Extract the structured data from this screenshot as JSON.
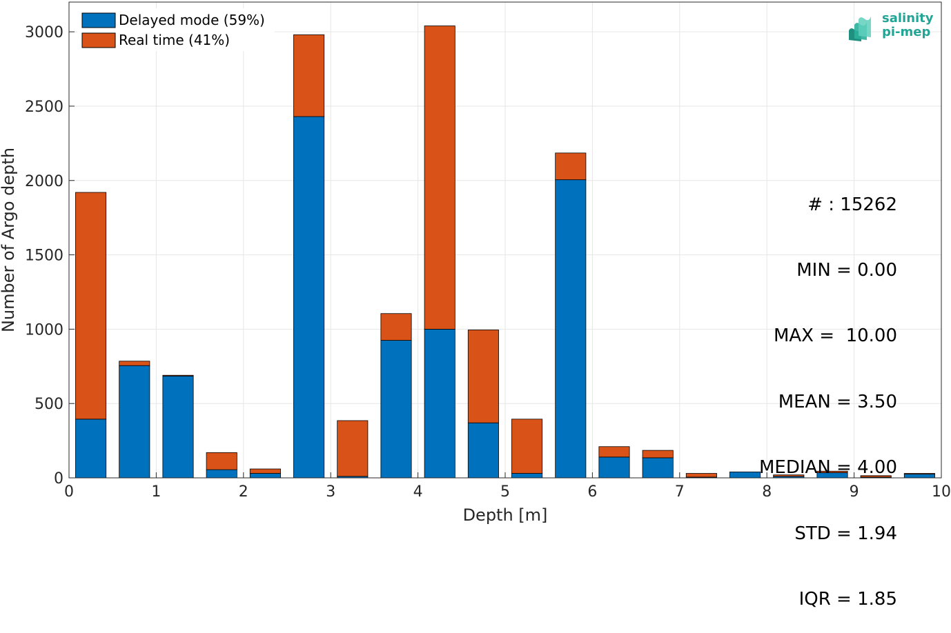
{
  "chart_data": {
    "type": "bar",
    "stacked": true,
    "xlabel": "Depth [m]",
    "ylabel": "Number of Argo depth",
    "xlim": [
      0,
      10
    ],
    "ylim": [
      0,
      3200
    ],
    "xticks": [
      "0",
      "1",
      "2",
      "3",
      "4",
      "5",
      "6",
      "7",
      "8",
      "9",
      "10"
    ],
    "yticks": [
      "0",
      "500",
      "1000",
      "1500",
      "2000",
      "2500",
      "3000"
    ],
    "grid": true,
    "legend_position": "top-left",
    "x": [
      0.25,
      0.75,
      1.25,
      1.75,
      2.25,
      2.75,
      3.25,
      3.75,
      4.25,
      4.75,
      5.25,
      5.75,
      6.25,
      6.75,
      7.25,
      7.75,
      8.25,
      8.75,
      9.25,
      9.75
    ],
    "series": [
      {
        "name": "Delayed mode (59%)",
        "color": "#0072bd",
        "values": [
          395,
          755,
          685,
          55,
          30,
          2430,
          10,
          925,
          1000,
          370,
          30,
          2005,
          140,
          135,
          5,
          40,
          10,
          35,
          5,
          25
        ]
      },
      {
        "name": "Real time (41%)",
        "color": "#d95319",
        "values": [
          1525,
          30,
          5,
          115,
          30,
          550,
          375,
          180,
          2040,
          625,
          365,
          180,
          70,
          50,
          25,
          0,
          10,
          10,
          10,
          5
        ]
      }
    ]
  },
  "stats": [
    "# : 15262",
    "MIN = 0.00",
    "MAX =  10.00",
    "MEAN = 3.50",
    "MEDIAN = 4.00",
    "STD = 1.94",
    "IQR = 1.85"
  ],
  "logo": {
    "line1": "salinity",
    "line2": "pi-mep",
    "color": "#23a596",
    "icon": "wave-layers-icon"
  }
}
